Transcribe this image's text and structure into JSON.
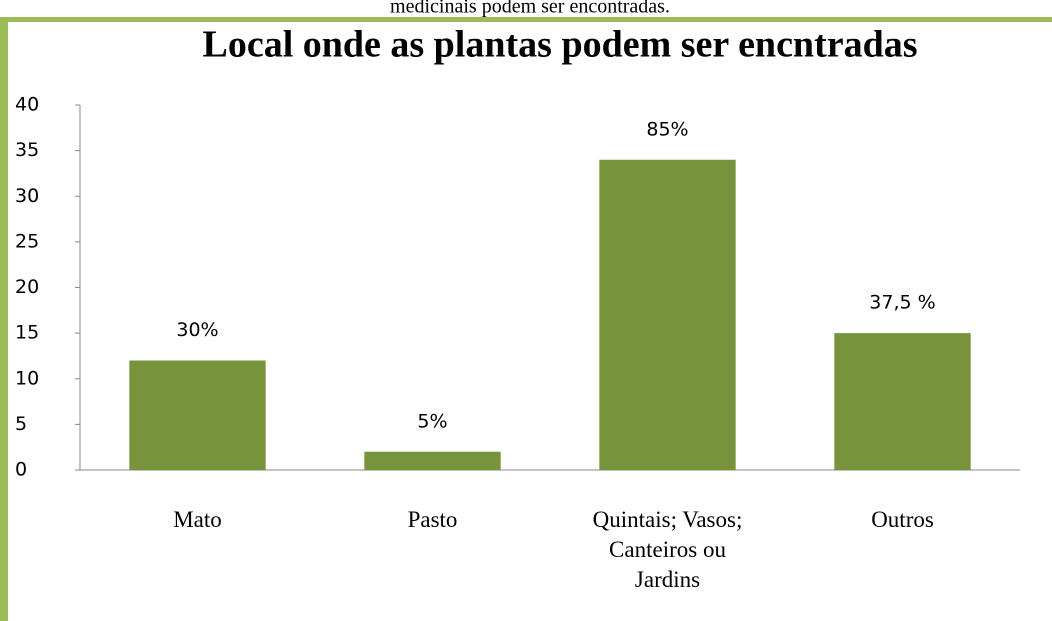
{
  "caption": "medicinais podem ser encontradas.",
  "chart_data": {
    "type": "bar",
    "title": "Local onde as plantas podem ser encntradas",
    "categories": [
      "Mato",
      "Pasto",
      "Quintais; Vasos; Canteiros ou Jardins",
      "Outros"
    ],
    "values": [
      12,
      2,
      34,
      15
    ],
    "bar_annotations": [
      "30%",
      "5%",
      "85%",
      "37,5 %"
    ],
    "color": "#77933c",
    "ylim": [
      0,
      40
    ],
    "yticks": [
      0,
      5,
      10,
      15,
      20,
      25,
      30,
      35,
      40
    ],
    "grid": false
  }
}
